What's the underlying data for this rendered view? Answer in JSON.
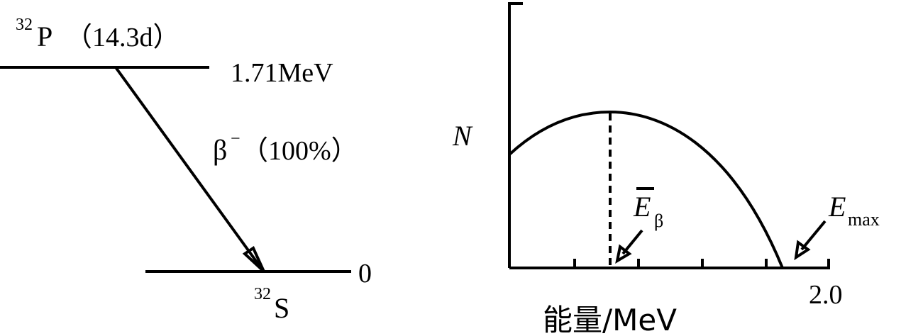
{
  "decay_scheme": {
    "parent": {
      "mass_number": "32",
      "symbol": "P",
      "half_life": "（14.3d）",
      "energy": "1.71MeV"
    },
    "transition": {
      "particle": "β",
      "charge": "−",
      "branching": "（100%）"
    },
    "daughter": {
      "mass_number": "32",
      "symbol": "S",
      "energy": "0"
    }
  },
  "spectrum": {
    "y_label": "N",
    "mean_energy": {
      "symbol": "E",
      "subscript": "β"
    },
    "max_energy": {
      "symbol": "E",
      "subscript": "max"
    },
    "x_end_label": "2.0",
    "x_label": "能量/MeV"
  }
}
